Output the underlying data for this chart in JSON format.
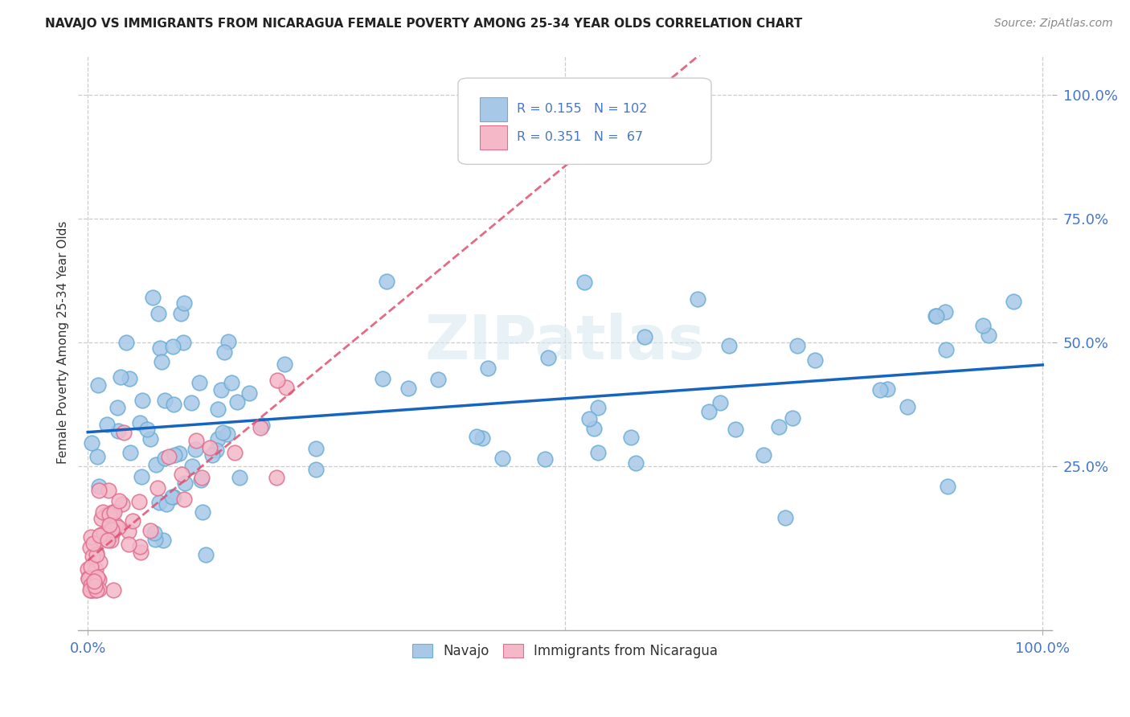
{
  "title": "NAVAJO VS IMMIGRANTS FROM NICARAGUA FEMALE POVERTY AMONG 25-34 YEAR OLDS CORRELATION CHART",
  "source": "Source: ZipAtlas.com",
  "ylabel": "Female Poverty Among 25-34 Year Olds",
  "legend_labels": [
    "Navajo",
    "Immigrants from Nicaragua"
  ],
  "navajo_color": "#a8c8e8",
  "navajo_edge_color": "#6baed6",
  "nicaragua_color": "#f4b8c8",
  "nicaragua_edge_color": "#e07090",
  "navajo_line_color": "#1565C0",
  "nicaragua_line_color": "#e05070",
  "grid_color": "#cccccc",
  "navajo_R": 0.155,
  "navajo_N": 102,
  "nicaragua_R": 0.351,
  "nicaragua_N": 67,
  "background_color": "#ffffff",
  "watermark": "ZIPatlas",
  "title_color": "#222222",
  "source_color": "#888888",
  "tick_color": "#4477cc",
  "ylabel_color": "#333333"
}
